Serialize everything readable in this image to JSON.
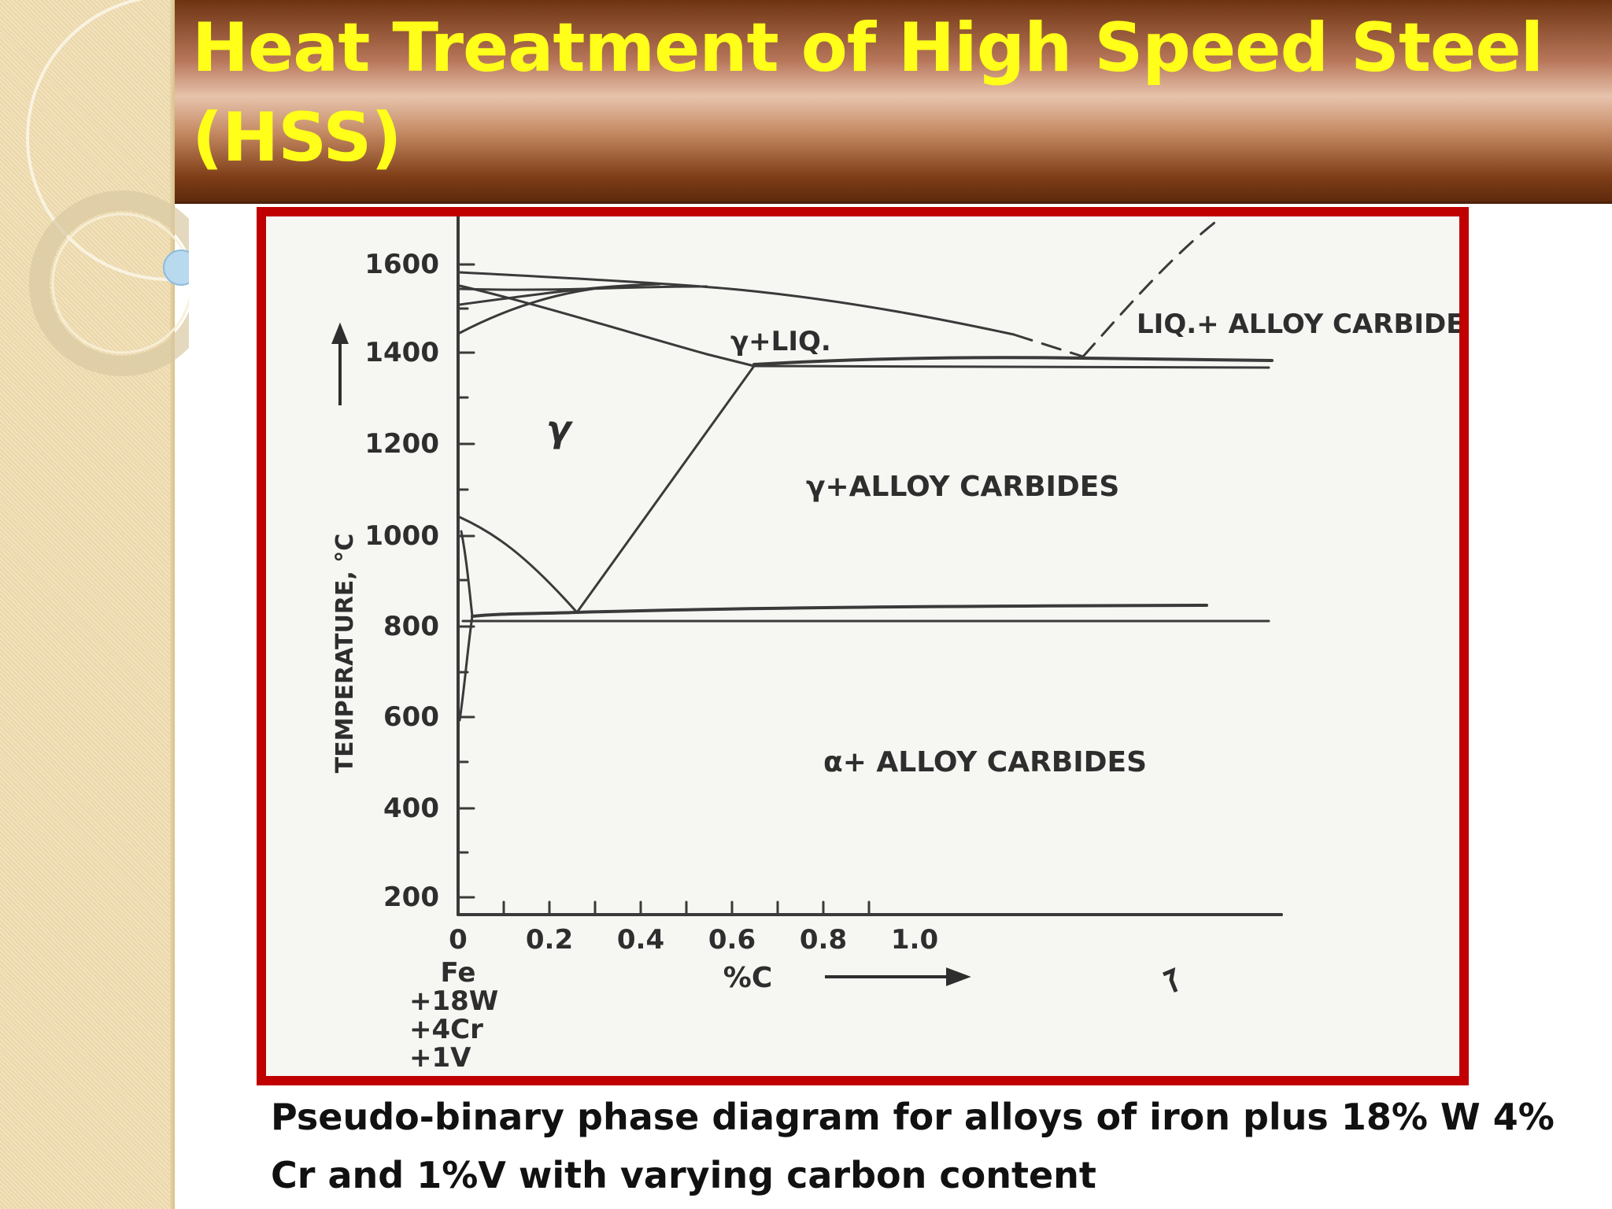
{
  "slide": {
    "title": "Heat Treatment of High Speed Steel (HSS)",
    "caption": "Pseudo-binary phase diagram for alloys of iron plus 18% W 4% Cr and 1%V with varying carbon content"
  },
  "colors": {
    "title_text": "#ffff1a",
    "frame_border": "#c00000",
    "title_bar": "#8a4a22",
    "side_panel": "#f0dfb6"
  },
  "diagram": {
    "y_axis": {
      "label": "TEMPERATURE, °C",
      "ticks": [
        "1600",
        "1400",
        "1200",
        "1000",
        "800",
        "600",
        "400",
        "200"
      ]
    },
    "x_axis": {
      "label": "%C",
      "ticks": [
        "0",
        "0.2",
        "0.4",
        "0.6",
        "0.8",
        "1.0"
      ],
      "origin_lines": [
        "Fe",
        "+18W",
        "+4Cr",
        "+1V"
      ]
    },
    "regions": {
      "gamma": "γ",
      "gamma_liquid": "γ+LIQ.",
      "liquid_carbides": "LIQ.+ ALLOY CARBIDES",
      "gamma_carbides": "γ+ALLOY CARBIDES",
      "alpha_carbides": "α+ ALLOY CARBIDES"
    }
  }
}
